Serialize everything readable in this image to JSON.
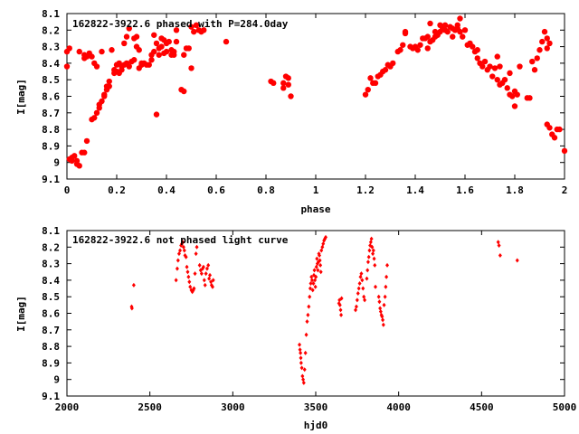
{
  "colors": {
    "points": "#ff0000",
    "axes": "#000000",
    "background": "#ffffff"
  },
  "chart_data": [
    {
      "type": "scatter",
      "title": "162822-3922.6 phased with P=284.0day",
      "xlabel": "phase",
      "ylabel": "I[mag]",
      "xlim": [
        0,
        2
      ],
      "ylim": [
        8.1,
        9.1
      ],
      "y_inverted": true,
      "grid": false,
      "marker": "filled-circle",
      "xticks": [
        "0",
        "0.2",
        "0.4",
        "0.6",
        "0.8",
        "1",
        "1.2",
        "1.4",
        "1.6",
        "1.8",
        "2"
      ],
      "yticks": [
        "8.1",
        "8.2",
        "8.3",
        "8.4",
        "8.5",
        "8.6",
        "8.7",
        "8.8",
        "8.9",
        "9",
        "9.1"
      ],
      "points": [
        [
          0.0,
          8.42
        ],
        [
          0.0,
          8.33
        ],
        [
          0.01,
          8.31
        ],
        [
          0.01,
          8.98
        ],
        [
          0.02,
          8.97
        ],
        [
          0.02,
          8.99
        ],
        [
          0.03,
          8.96
        ],
        [
          0.04,
          8.99
        ],
        [
          0.04,
          9.01
        ],
        [
          0.05,
          9.02
        ],
        [
          0.05,
          8.33
        ],
        [
          0.06,
          8.94
        ],
        [
          0.07,
          8.94
        ],
        [
          0.07,
          8.35
        ],
        [
          0.07,
          8.37
        ],
        [
          0.08,
          8.87
        ],
        [
          0.08,
          8.36
        ],
        [
          0.09,
          8.34
        ],
        [
          0.1,
          8.36
        ],
        [
          0.1,
          8.74
        ],
        [
          0.11,
          8.73
        ],
        [
          0.11,
          8.4
        ],
        [
          0.12,
          8.7
        ],
        [
          0.12,
          8.42
        ],
        [
          0.13,
          8.67
        ],
        [
          0.13,
          8.65
        ],
        [
          0.14,
          8.63
        ],
        [
          0.14,
          8.33
        ],
        [
          0.15,
          8.59
        ],
        [
          0.15,
          8.6
        ],
        [
          0.16,
          8.56
        ],
        [
          0.16,
          8.54
        ],
        [
          0.17,
          8.51
        ],
        [
          0.17,
          8.54
        ],
        [
          0.18,
          8.32
        ],
        [
          0.19,
          8.46
        ],
        [
          0.19,
          8.44
        ],
        [
          0.2,
          8.41
        ],
        [
          0.2,
          8.45
        ],
        [
          0.21,
          8.46
        ],
        [
          0.21,
          8.4
        ],
        [
          0.22,
          8.42
        ],
        [
          0.22,
          8.44
        ],
        [
          0.23,
          8.41
        ],
        [
          0.23,
          8.28
        ],
        [
          0.24,
          8.4
        ],
        [
          0.24,
          8.24
        ],
        [
          0.25,
          8.42
        ],
        [
          0.25,
          8.19
        ],
        [
          0.26,
          8.39
        ],
        [
          0.27,
          8.38
        ],
        [
          0.27,
          8.25
        ],
        [
          0.28,
          8.3
        ],
        [
          0.28,
          8.24
        ],
        [
          0.29,
          8.32
        ],
        [
          0.29,
          8.43
        ],
        [
          0.3,
          8.41
        ],
        [
          0.3,
          8.4
        ],
        [
          0.31,
          8.4
        ],
        [
          0.32,
          8.41
        ],
        [
          0.33,
          8.41
        ],
        [
          0.34,
          8.38
        ],
        [
          0.34,
          8.35
        ],
        [
          0.35,
          8.33
        ],
        [
          0.35,
          8.23
        ],
        [
          0.36,
          8.71
        ],
        [
          0.36,
          8.28
        ],
        [
          0.37,
          8.31
        ],
        [
          0.37,
          8.35
        ],
        [
          0.38,
          8.25
        ],
        [
          0.38,
          8.3
        ],
        [
          0.39,
          8.34
        ],
        [
          0.39,
          8.26
        ],
        [
          0.4,
          8.33
        ],
        [
          0.4,
          8.28
        ],
        [
          0.41,
          8.27
        ],
        [
          0.42,
          8.32
        ],
        [
          0.42,
          8.35
        ],
        [
          0.43,
          8.35
        ],
        [
          0.43,
          8.33
        ],
        [
          0.44,
          8.27
        ],
        [
          0.44,
          8.2
        ],
        [
          0.46,
          8.56
        ],
        [
          0.47,
          8.57
        ],
        [
          0.47,
          8.35
        ],
        [
          0.48,
          8.31
        ],
        [
          0.49,
          8.31
        ],
        [
          0.5,
          8.43
        ],
        [
          0.5,
          8.18
        ],
        [
          0.51,
          8.21
        ],
        [
          0.52,
          8.17
        ],
        [
          0.53,
          8.2
        ],
        [
          0.54,
          8.21
        ],
        [
          0.55,
          8.2
        ],
        [
          0.64,
          8.27
        ],
        [
          0.82,
          8.51
        ],
        [
          0.83,
          8.52
        ],
        [
          0.87,
          8.52
        ],
        [
          0.87,
          8.55
        ],
        [
          0.88,
          8.48
        ],
        [
          0.89,
          8.49
        ],
        [
          0.89,
          8.53
        ],
        [
          0.9,
          8.6
        ],
        [
          1.2,
          8.59
        ],
        [
          1.21,
          8.56
        ],
        [
          1.22,
          8.49
        ],
        [
          1.23,
          8.52
        ],
        [
          1.24,
          8.52
        ],
        [
          1.25,
          8.48
        ],
        [
          1.26,
          8.47
        ],
        [
          1.27,
          8.45
        ],
        [
          1.28,
          8.44
        ],
        [
          1.29,
          8.41
        ],
        [
          1.3,
          8.42
        ],
        [
          1.31,
          8.4
        ],
        [
          1.33,
          8.33
        ],
        [
          1.34,
          8.32
        ],
        [
          1.35,
          8.29
        ],
        [
          1.36,
          8.22
        ],
        [
          1.36,
          8.21
        ],
        [
          1.38,
          8.3
        ],
        [
          1.39,
          8.31
        ],
        [
          1.4,
          8.3
        ],
        [
          1.41,
          8.32
        ],
        [
          1.42,
          8.29
        ],
        [
          1.43,
          8.25
        ],
        [
          1.44,
          8.25
        ],
        [
          1.45,
          8.31
        ],
        [
          1.45,
          8.24
        ],
        [
          1.46,
          8.27
        ],
        [
          1.46,
          8.16
        ],
        [
          1.47,
          8.26
        ],
        [
          1.48,
          8.21
        ],
        [
          1.48,
          8.24
        ],
        [
          1.49,
          8.23
        ],
        [
          1.5,
          8.21
        ],
        [
          1.5,
          8.17
        ],
        [
          1.51,
          8.19
        ],
        [
          1.52,
          8.2
        ],
        [
          1.52,
          8.17
        ],
        [
          1.53,
          8.21
        ],
        [
          1.54,
          8.18
        ],
        [
          1.55,
          8.19
        ],
        [
          1.55,
          8.24
        ],
        [
          1.56,
          8.2
        ],
        [
          1.57,
          8.19
        ],
        [
          1.57,
          8.17
        ],
        [
          1.58,
          8.13
        ],
        [
          1.58,
          8.21
        ],
        [
          1.59,
          8.24
        ],
        [
          1.6,
          8.2
        ],
        [
          1.61,
          8.29
        ],
        [
          1.62,
          8.28
        ],
        [
          1.63,
          8.3
        ],
        [
          1.64,
          8.33
        ],
        [
          1.65,
          8.37
        ],
        [
          1.65,
          8.32
        ],
        [
          1.66,
          8.4
        ],
        [
          1.67,
          8.42
        ],
        [
          1.68,
          8.39
        ],
        [
          1.69,
          8.44
        ],
        [
          1.7,
          8.42
        ],
        [
          1.71,
          8.48
        ],
        [
          1.72,
          8.43
        ],
        [
          1.73,
          8.36
        ],
        [
          1.73,
          8.5
        ],
        [
          1.74,
          8.53
        ],
        [
          1.74,
          8.42
        ],
        [
          1.75,
          8.52
        ],
        [
          1.76,
          8.5
        ],
        [
          1.77,
          8.55
        ],
        [
          1.78,
          8.46
        ],
        [
          1.78,
          8.59
        ],
        [
          1.79,
          8.6
        ],
        [
          1.8,
          8.66
        ],
        [
          1.8,
          8.57
        ],
        [
          1.81,
          8.59
        ],
        [
          1.82,
          8.42
        ],
        [
          1.85,
          8.61
        ],
        [
          1.86,
          8.61
        ],
        [
          1.87,
          8.39
        ],
        [
          1.88,
          8.44
        ],
        [
          1.89,
          8.37
        ],
        [
          1.9,
          8.32
        ],
        [
          1.91,
          8.27
        ],
        [
          1.92,
          8.21
        ],
        [
          1.93,
          8.25
        ],
        [
          1.93,
          8.31
        ],
        [
          1.94,
          8.28
        ],
        [
          1.93,
          8.77
        ],
        [
          1.94,
          8.79
        ],
        [
          1.95,
          8.83
        ],
        [
          1.96,
          8.85
        ],
        [
          1.97,
          8.8
        ],
        [
          1.98,
          8.8
        ],
        [
          2.0,
          8.93
        ]
      ]
    },
    {
      "type": "scatter",
      "title": "162822-3922.6 not phased light curve",
      "xlabel": "hjd0",
      "ylabel": "I[mag]",
      "xlim": [
        2000,
        5000
      ],
      "ylim": [
        8.1,
        9.1
      ],
      "y_inverted": true,
      "grid": false,
      "marker": "small-diamond",
      "xticks": [
        "2000",
        "2500",
        "3000",
        "3500",
        "4000",
        "4500",
        "5000"
      ],
      "yticks": [
        "8.1",
        "8.2",
        "8.3",
        "8.4",
        "8.5",
        "8.6",
        "8.7",
        "8.8",
        "8.9",
        "9",
        "9.1"
      ],
      "points": [
        [
          2390,
          8.56
        ],
        [
          2392,
          8.57
        ],
        [
          2403,
          8.43
        ],
        [
          2658,
          8.4
        ],
        [
          2665,
          8.33
        ],
        [
          2670,
          8.28
        ],
        [
          2676,
          8.24
        ],
        [
          2682,
          8.22
        ],
        [
          2688,
          8.19
        ],
        [
          2693,
          8.18
        ],
        [
          2698,
          8.17
        ],
        [
          2703,
          8.2
        ],
        [
          2708,
          8.22
        ],
        [
          2712,
          8.25
        ],
        [
          2718,
          8.26
        ],
        [
          2723,
          8.32
        ],
        [
          2728,
          8.35
        ],
        [
          2733,
          8.38
        ],
        [
          2738,
          8.41
        ],
        [
          2743,
          8.44
        ],
        [
          2750,
          8.46
        ],
        [
          2756,
          8.47
        ],
        [
          2762,
          8.46
        ],
        [
          2766,
          8.45
        ],
        [
          2772,
          8.36
        ],
        [
          2778,
          8.24
        ],
        [
          2783,
          8.2
        ],
        [
          2800,
          8.31
        ],
        [
          2806,
          8.34
        ],
        [
          2812,
          8.36
        ],
        [
          2818,
          8.33
        ],
        [
          2823,
          8.32
        ],
        [
          2828,
          8.4
        ],
        [
          2833,
          8.43
        ],
        [
          2838,
          8.36
        ],
        [
          2845,
          8.33
        ],
        [
          2852,
          8.31
        ],
        [
          2857,
          8.39
        ],
        [
          2862,
          8.37
        ],
        [
          2868,
          8.41
        ],
        [
          2872,
          8.43
        ],
        [
          2878,
          8.44
        ],
        [
          2882,
          8.4
        ],
        [
          3402,
          8.79
        ],
        [
          3405,
          8.82
        ],
        [
          3408,
          8.84
        ],
        [
          3410,
          8.87
        ],
        [
          3412,
          8.9
        ],
        [
          3416,
          8.93
        ],
        [
          3420,
          8.98
        ],
        [
          3424,
          9.0
        ],
        [
          3428,
          9.02
        ],
        [
          3433,
          8.94
        ],
        [
          3438,
          8.84
        ],
        [
          3443,
          8.73
        ],
        [
          3448,
          8.65
        ],
        [
          3453,
          8.61
        ],
        [
          3458,
          8.56
        ],
        [
          3463,
          8.5
        ],
        [
          3467,
          8.45
        ],
        [
          3470,
          8.42
        ],
        [
          3474,
          8.38
        ],
        [
          3478,
          8.4
        ],
        [
          3482,
          8.46
        ],
        [
          3486,
          8.42
        ],
        [
          3489,
          8.37
        ],
        [
          3492,
          8.34
        ],
        [
          3495,
          8.4
        ],
        [
          3498,
          8.44
        ],
        [
          3501,
          8.38
        ],
        [
          3504,
          8.32
        ],
        [
          3507,
          8.27
        ],
        [
          3510,
          8.3
        ],
        [
          3513,
          8.34
        ],
        [
          3516,
          8.29
        ],
        [
          3519,
          8.24
        ],
        [
          3522,
          8.25
        ],
        [
          3525,
          8.28
        ],
        [
          3528,
          8.31
        ],
        [
          3531,
          8.35
        ],
        [
          3534,
          8.22
        ],
        [
          3540,
          8.2
        ],
        [
          3545,
          8.18
        ],
        [
          3550,
          8.16
        ],
        [
          3555,
          8.15
        ],
        [
          3560,
          8.14
        ],
        [
          3640,
          8.54
        ],
        [
          3643,
          8.52
        ],
        [
          3646,
          8.55
        ],
        [
          3650,
          8.58
        ],
        [
          3653,
          8.61
        ],
        [
          3656,
          8.51
        ],
        [
          3740,
          8.58
        ],
        [
          3745,
          8.56
        ],
        [
          3750,
          8.52
        ],
        [
          3755,
          8.48
        ],
        [
          3760,
          8.45
        ],
        [
          3765,
          8.42
        ],
        [
          3770,
          8.38
        ],
        [
          3775,
          8.36
        ],
        [
          3780,
          8.4
        ],
        [
          3785,
          8.45
        ],
        [
          3790,
          8.5
        ],
        [
          3795,
          8.52
        ],
        [
          3808,
          8.39
        ],
        [
          3812,
          8.34
        ],
        [
          3816,
          8.29
        ],
        [
          3820,
          8.26
        ],
        [
          3824,
          8.22
        ],
        [
          3828,
          8.19
        ],
        [
          3832,
          8.17
        ],
        [
          3836,
          8.15
        ],
        [
          3840,
          8.2
        ],
        [
          3844,
          8.24
        ],
        [
          3848,
          8.22
        ],
        [
          3852,
          8.27
        ],
        [
          3856,
          8.31
        ],
        [
          3860,
          8.44
        ],
        [
          3880,
          8.5
        ],
        [
          3884,
          8.53
        ],
        [
          3888,
          8.57
        ],
        [
          3892,
          8.59
        ],
        [
          3896,
          8.61
        ],
        [
          3900,
          8.62
        ],
        [
          3904,
          8.64
        ],
        [
          3908,
          8.67
        ],
        [
          3912,
          8.55
        ],
        [
          3918,
          8.5
        ],
        [
          3922,
          8.44
        ],
        [
          3926,
          8.38
        ],
        [
          3931,
          8.31
        ],
        [
          4600,
          8.17
        ],
        [
          4605,
          8.19
        ],
        [
          4612,
          8.25
        ],
        [
          4715,
          8.28
        ]
      ]
    }
  ]
}
